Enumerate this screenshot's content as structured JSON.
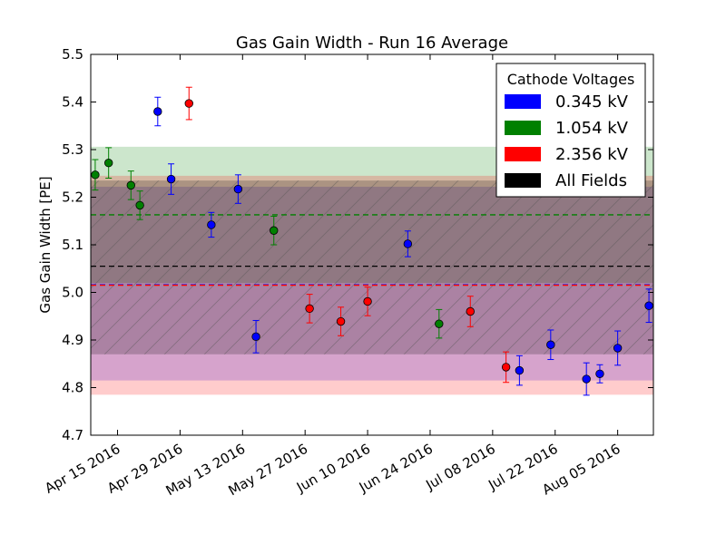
{
  "chart_data": {
    "type": "scatter",
    "title": "Gas Gain Width - Run 16 Average",
    "xlabel": "",
    "ylabel": "Gas Gain Width [PE]",
    "ylim": [
      4.7,
      5.5
    ],
    "yticks": [
      "4.7",
      "4.8",
      "4.9",
      "5.0",
      "5.1",
      "5.2",
      "5.3",
      "5.4",
      "5.5"
    ],
    "xlim": [
      "2016-04-09",
      "2016-08-13"
    ],
    "xticks": [
      {
        "date": "2016-04-15",
        "label": "Apr 15 2016"
      },
      {
        "date": "2016-04-29",
        "label": "Apr 29 2016"
      },
      {
        "date": "2016-05-13",
        "label": "May 13 2016"
      },
      {
        "date": "2016-05-27",
        "label": "May 27 2016"
      },
      {
        "date": "2016-06-10",
        "label": "Jun 10 2016"
      },
      {
        "date": "2016-06-24",
        "label": "Jun 24 2016"
      },
      {
        "date": "2016-07-08",
        "label": "Jul 08 2016"
      },
      {
        "date": "2016-07-22",
        "label": "Jul 22 2016"
      },
      {
        "date": "2016-08-05",
        "label": "Aug 05 2016"
      }
    ],
    "legend": {
      "title": "Cathode Voltages",
      "placement": "top-right",
      "entries": [
        {
          "label": "0.345 kV",
          "color": "#0000ff"
        },
        {
          "label": "1.054 kV",
          "color": "#008000"
        },
        {
          "label": "2.356 kV",
          "color": "#ff0000"
        },
        {
          "label": "All Fields",
          "color": "#000000"
        }
      ]
    },
    "bands": [
      {
        "name": "0.345 kV",
        "color": "#0000ff",
        "mean": 5.016,
        "low": 4.815,
        "high": 5.222,
        "hatched": false
      },
      {
        "name": "1.054 kV",
        "color": "#008000",
        "mean": 5.163,
        "low": 5.02,
        "high": 5.306,
        "hatched": false
      },
      {
        "name": "2.356 kV",
        "color": "#ff0000",
        "mean": 5.015,
        "low": 4.785,
        "high": 5.245,
        "hatched": false
      },
      {
        "name": "All Fields",
        "color": "#000000",
        "mean": 5.055,
        "low": 4.87,
        "high": 5.235,
        "hatched": true
      }
    ],
    "series": [
      {
        "name": "0.345 kV",
        "color": "#0000ff",
        "points": [
          {
            "x": "2016-04-24",
            "y": 5.38,
            "err": 0.03
          },
          {
            "x": "2016-04-27",
            "y": 5.238,
            "err": 0.032
          },
          {
            "x": "2016-05-06",
            "y": 5.142,
            "err": 0.026
          },
          {
            "x": "2016-05-12",
            "y": 5.217,
            "err": 0.03
          },
          {
            "x": "2016-05-16",
            "y": 4.907,
            "err": 0.034
          },
          {
            "x": "2016-06-19",
            "y": 5.102,
            "err": 0.027
          },
          {
            "x": "2016-07-14",
            "y": 4.836,
            "err": 0.031
          },
          {
            "x": "2016-07-21",
            "y": 4.89,
            "err": 0.031
          },
          {
            "x": "2016-07-29",
            "y": 4.818,
            "err": 0.034
          },
          {
            "x": "2016-08-01",
            "y": 4.829,
            "err": 0.019
          },
          {
            "x": "2016-08-05",
            "y": 4.883,
            "err": 0.036
          },
          {
            "x": "2016-08-12",
            "y": 4.972,
            "err": 0.035
          }
        ]
      },
      {
        "name": "1.054 kV",
        "color": "#008000",
        "points": [
          {
            "x": "2016-04-10",
            "y": 5.247,
            "err": 0.032
          },
          {
            "x": "2016-04-13",
            "y": 5.272,
            "err": 0.032
          },
          {
            "x": "2016-04-18",
            "y": 5.225,
            "err": 0.03
          },
          {
            "x": "2016-04-20",
            "y": 5.183,
            "err": 0.03
          },
          {
            "x": "2016-05-20",
            "y": 5.13,
            "err": 0.03
          },
          {
            "x": "2016-06-26",
            "y": 4.934,
            "err": 0.03
          }
        ]
      },
      {
        "name": "2.356 kV",
        "color": "#ff0000",
        "points": [
          {
            "x": "2016-05-01",
            "y": 5.397,
            "err": 0.034
          },
          {
            "x": "2016-05-28",
            "y": 4.966,
            "err": 0.03
          },
          {
            "x": "2016-06-04",
            "y": 4.939,
            "err": 0.03
          },
          {
            "x": "2016-06-10",
            "y": 4.981,
            "err": 0.03
          },
          {
            "x": "2016-07-03",
            "y": 4.96,
            "err": 0.032
          },
          {
            "x": "2016-07-11",
            "y": 4.843,
            "err": 0.032
          }
        ]
      }
    ]
  }
}
